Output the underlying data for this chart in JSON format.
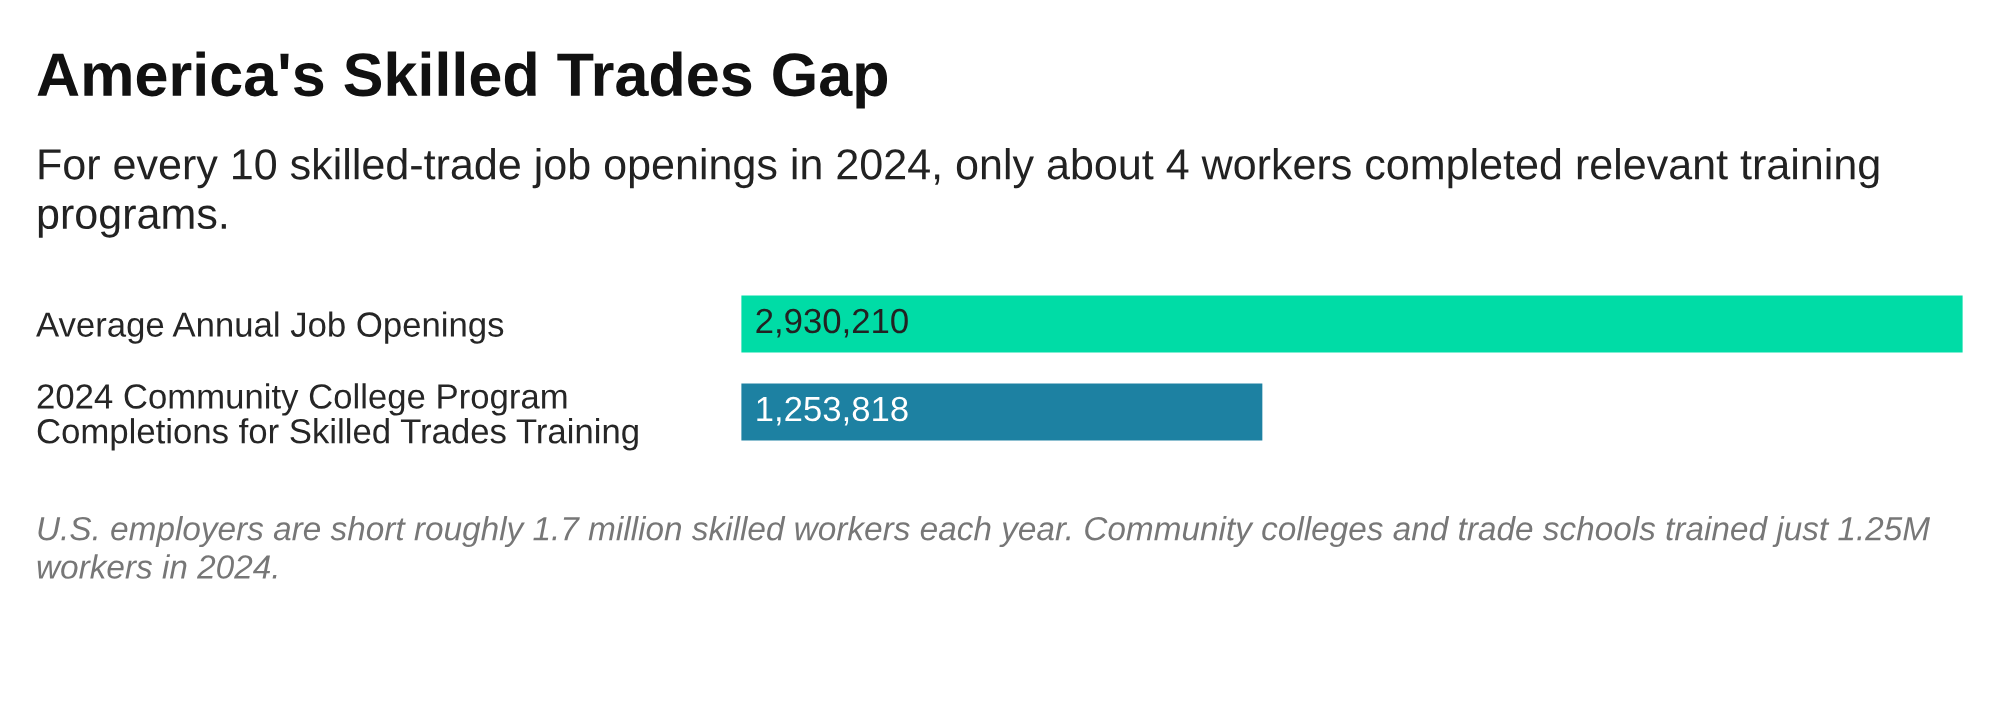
{
  "chart_data": {
    "type": "bar",
    "orientation": "horizontal",
    "title": "America's Skilled Trades Gap",
    "subtitle": "For every 10 skilled-trade job openings in 2024, only about 4 workers completed relevant training programs.",
    "categories": [
      "Average Annual Job Openings",
      "2024 Community College Program\nCompletions for Skilled Trades Training"
    ],
    "values": [
      2930210,
      1253818
    ],
    "colors": [
      "#00dca6",
      "#1d81a2"
    ],
    "value_labels": [
      "2,930,210",
      "1,253,818"
    ],
    "annotations": [
      "U.S. employers are short roughly 1.7 million skilled workers each year. Community colleges and trade schools trained just 1.25M workers in 2024."
    ],
    "grid": false,
    "legend": false
  }
}
